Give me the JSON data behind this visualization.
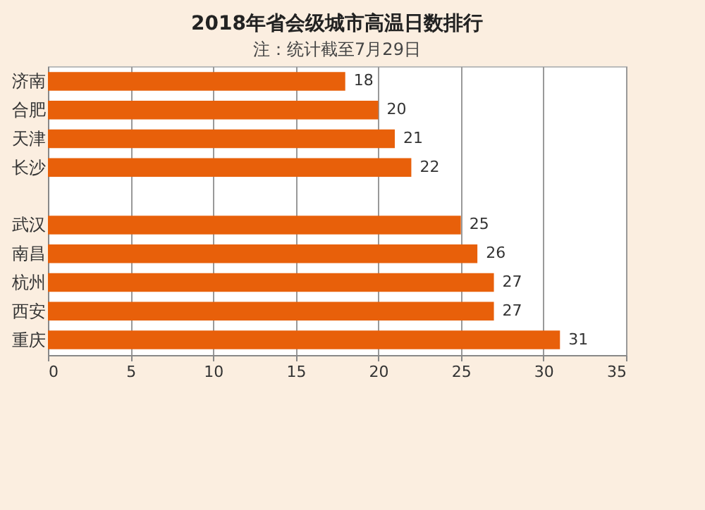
{
  "chart_data": {
    "type": "bar",
    "orientation": "horizontal",
    "title": "2018年省会级城市高温日数排行",
    "annotations": [
      "注：统计截至7月29日"
    ],
    "categories": [
      "济南",
      "合肥",
      "天津",
      "长沙",
      null,
      "武汉",
      "南昌",
      "杭州",
      "西安",
      "重庆"
    ],
    "values": [
      18,
      20,
      21,
      22,
      null,
      25,
      26,
      27,
      27,
      31
    ],
    "color": "#e8600a",
    "xlim": [
      0,
      35
    ],
    "xticks": [
      0,
      5,
      10,
      15,
      20,
      25,
      30,
      35
    ],
    "grid": "x",
    "data_labels": true
  }
}
